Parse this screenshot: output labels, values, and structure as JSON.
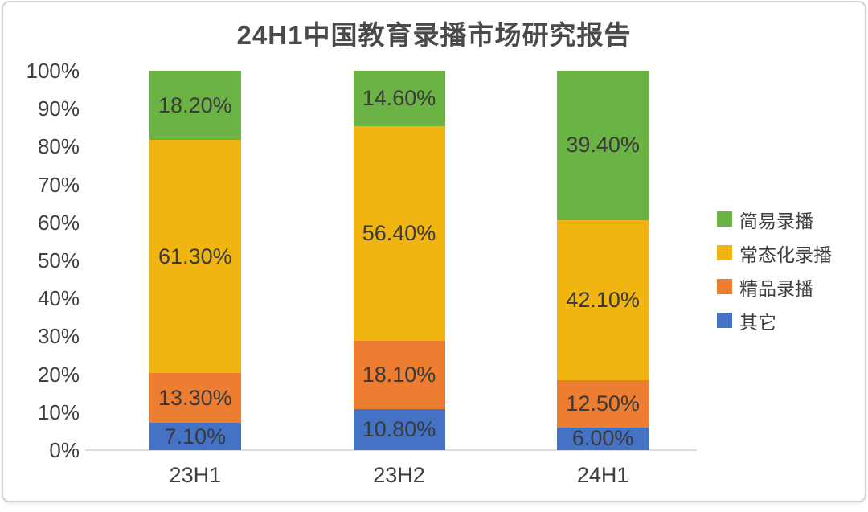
{
  "title": "24H1中国教育录播市场研究报告",
  "chart_data": {
    "type": "bar",
    "subtype": "stacked-100-percent-column",
    "title": "24H1中国教育录播市场研究报告",
    "xlabel": "",
    "ylabel": "",
    "ylim": [
      0,
      100
    ],
    "grid": false,
    "legend_position": "right",
    "categories": [
      "23H1",
      "23H2",
      "24H1"
    ],
    "y_ticks": [
      "0%",
      "10%",
      "20%",
      "30%",
      "40%",
      "50%",
      "60%",
      "70%",
      "80%",
      "90%",
      "100%"
    ],
    "series": [
      {
        "name": "其它",
        "color": "#4472c4",
        "values": [
          7.1,
          10.8,
          6.0
        ],
        "labels": [
          "7.10%",
          "10.80%",
          "6.00%"
        ]
      },
      {
        "name": "精品录播",
        "color": "#ed7d31",
        "values": [
          13.3,
          18.1,
          12.5
        ],
        "labels": [
          "13.30%",
          "18.10%",
          "12.50%"
        ]
      },
      {
        "name": "常态化录播",
        "color": "#f0b510",
        "values": [
          61.3,
          56.4,
          42.1
        ],
        "labels": [
          "61.30%",
          "56.40%",
          "42.10%"
        ]
      },
      {
        "name": "简易录播",
        "color": "#6ab344",
        "values": [
          18.2,
          14.6,
          39.4
        ],
        "labels": [
          "18.20%",
          "14.60%",
          "39.40%"
        ]
      }
    ],
    "legend_order": [
      "简易录播",
      "常态化录播",
      "精品录播",
      "其它"
    ]
  }
}
